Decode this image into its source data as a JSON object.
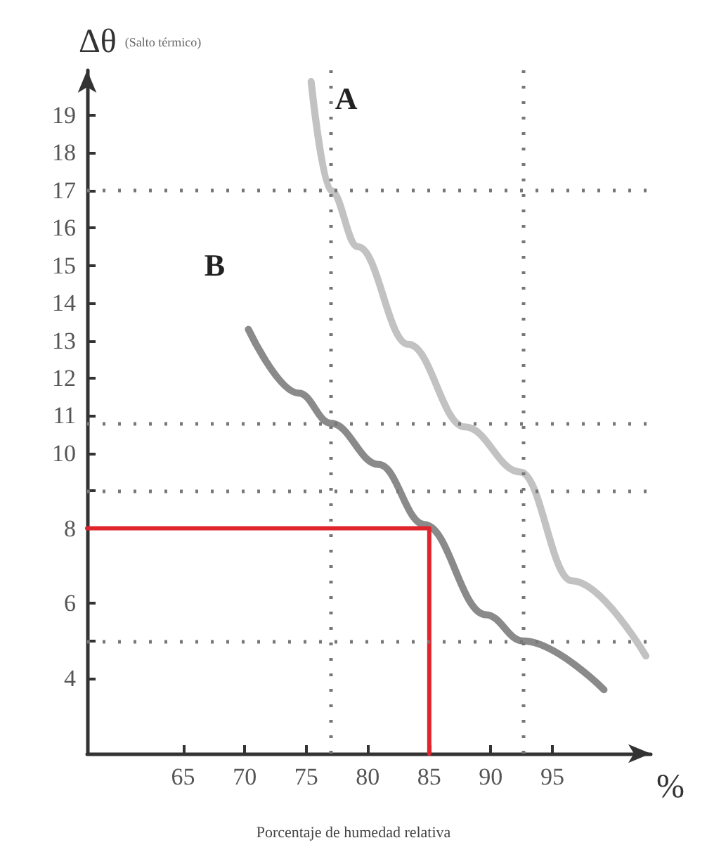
{
  "chart_data": {
    "type": "line",
    "ylabel": "Δθ (Salto térmico)",
    "xlabel": "%",
    "annotations": [
      "Porcentaje de humedad relativa"
    ],
    "xlim": [
      57.2,
      103
    ],
    "xticks": [
      65,
      70,
      75,
      80,
      85,
      90,
      95
    ],
    "ylim": [
      2,
      20.2
    ],
    "yticks": [
      4,
      {
        "value": 5,
        "label": null
      },
      6,
      8,
      {
        "value": 9,
        "label": null
      },
      10,
      11,
      12,
      13,
      14,
      15,
      16,
      17,
      18,
      19
    ],
    "grid": false,
    "marker": "none",
    "series": [
      {
        "name": "A",
        "color": "#c2c2c2",
        "x": [
          75.4,
          77,
          79.2,
          83.3,
          87.9,
          92.4,
          96.6,
          102.6
        ],
        "values": [
          19.9,
          17,
          15.5,
          12.9,
          10.7,
          9.5,
          6.6,
          4.6
        ]
      },
      {
        "name": "B",
        "color": "#8a8a8a",
        "x": [
          70.3,
          74.4,
          77,
          80.9,
          84.6,
          89.6,
          92.6,
          99.2
        ],
        "values": [
          13.3,
          11.6,
          10.8,
          9.7,
          8.1,
          5.7,
          5.0,
          3.7
        ]
      },
      {
        "color": "#e0242c",
        "x": [
          57.2,
          85,
          85
        ],
        "values": [
          8,
          8,
          2
        ]
      }
    ],
    "ref_lines": [
      {
        "axis": "y",
        "value": 17,
        "color": "#777777",
        "line_style": "dotted"
      },
      {
        "axis": "y",
        "value": 10.8,
        "color": "#777777",
        "line_style": "dotted"
      },
      {
        "axis": "y",
        "value": 9,
        "color": "#777777",
        "line_style": "dotted"
      },
      {
        "axis": "y",
        "value": 5,
        "color": "#777777",
        "line_style": "dotted"
      },
      {
        "axis": "x",
        "value": 77,
        "color": "#777777",
        "line_style": "dotted"
      },
      {
        "axis": "x",
        "value": 92.6,
        "color": "#777777",
        "line_style": "dotted"
      }
    ]
  }
}
